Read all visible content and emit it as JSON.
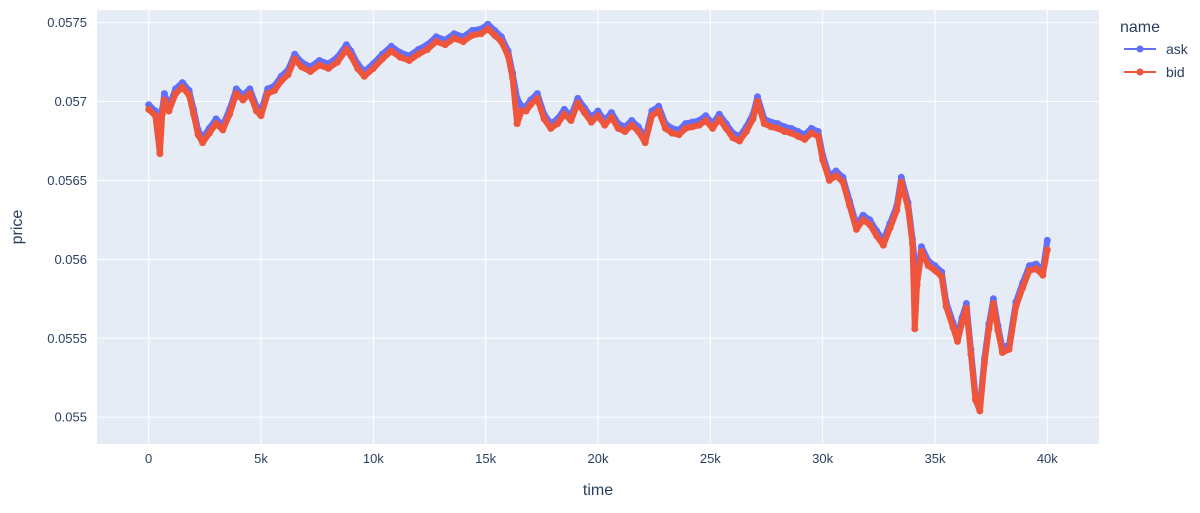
{
  "chart_data": {
    "type": "line",
    "mode": "lines+markers",
    "xlabel": "time",
    "ylabel": "price",
    "xlim": [
      -2300,
      42300
    ],
    "ylim": [
      0.05483,
      0.05758
    ],
    "x_ticks": [
      0,
      5000,
      10000,
      15000,
      20000,
      25000,
      30000,
      35000,
      40000
    ],
    "x_tick_labels": [
      "0",
      "5k",
      "10k",
      "15k",
      "20k",
      "25k",
      "30k",
      "35k",
      "40k"
    ],
    "y_ticks": [
      0.055,
      0.0555,
      0.056,
      0.0565,
      0.057,
      0.0575
    ],
    "y_tick_labels": [
      "0.055",
      "0.0555",
      "0.056",
      "0.0565",
      "0.057",
      "0.0575"
    ],
    "grid": true,
    "legend": {
      "title": "name",
      "placement": "top-right"
    },
    "series": [
      {
        "name": "ask",
        "color": "#636efa",
        "x": [
          0,
          300,
          500,
          600,
          700,
          900,
          1200,
          1500,
          1800,
          2000,
          2200,
          2400,
          2700,
          3000,
          3300,
          3600,
          3900,
          4200,
          4500,
          4800,
          5000,
          5300,
          5600,
          5900,
          6200,
          6500,
          6800,
          7200,
          7600,
          8000,
          8400,
          8800,
          9000,
          9300,
          9600,
          10000,
          10400,
          10800,
          11200,
          11600,
          12000,
          12400,
          12800,
          13200,
          13600,
          14000,
          14400,
          14800,
          15100,
          15400,
          15700,
          16000,
          16200,
          16400,
          16600,
          16800,
          17000,
          17300,
          17600,
          17900,
          18200,
          18500,
          18800,
          19100,
          19400,
          19700,
          20000,
          20300,
          20600,
          20900,
          21200,
          21500,
          21800,
          22100,
          22400,
          22700,
          23000,
          23300,
          23600,
          23900,
          24200,
          24500,
          24800,
          25100,
          25400,
          25700,
          26000,
          26300,
          26600,
          26900,
          27100,
          27400,
          27700,
          28000,
          28300,
          28600,
          28900,
          29200,
          29500,
          29800,
          30000,
          30300,
          30600,
          30900,
          31200,
          31500,
          31800,
          32100,
          32400,
          32700,
          33000,
          33300,
          33500,
          33800,
          34000,
          34100,
          34200,
          34400,
          34700,
          35000,
          35300,
          35500,
          35800,
          36000,
          36200,
          36400,
          36600,
          36800,
          37000,
          37200,
          37400,
          37600,
          37800,
          38000,
          38300,
          38600,
          38900,
          39200,
          39500,
          39800,
          40000
        ],
        "y": [
          0.05698,
          0.05694,
          0.0568,
          0.05695,
          0.05705,
          0.05697,
          0.05708,
          0.05712,
          0.05707,
          0.05695,
          0.05682,
          0.05677,
          0.05683,
          0.05689,
          0.05685,
          0.05695,
          0.05708,
          0.05704,
          0.05708,
          0.05697,
          0.05694,
          0.05708,
          0.0571,
          0.05716,
          0.0572,
          0.0573,
          0.05725,
          0.05722,
          0.05726,
          0.05724,
          0.05728,
          0.05736,
          0.05732,
          0.05724,
          0.05719,
          0.05724,
          0.0573,
          0.05735,
          0.05731,
          0.05729,
          0.05733,
          0.05736,
          0.05741,
          0.05739,
          0.05743,
          0.05741,
          0.05745,
          0.05746,
          0.05749,
          0.05745,
          0.05741,
          0.05732,
          0.05718,
          0.05702,
          0.05697,
          0.05697,
          0.05701,
          0.05705,
          0.05692,
          0.05686,
          0.05689,
          0.05695,
          0.05691,
          0.05702,
          0.05696,
          0.0569,
          0.05694,
          0.05688,
          0.05693,
          0.05686,
          0.05684,
          0.05688,
          0.05684,
          0.05677,
          0.05694,
          0.05697,
          0.05686,
          0.05683,
          0.05682,
          0.05686,
          0.05687,
          0.05688,
          0.05691,
          0.05686,
          0.05692,
          0.05686,
          0.0568,
          0.05678,
          0.05684,
          0.05692,
          0.05703,
          0.05689,
          0.05687,
          0.05686,
          0.05684,
          0.05683,
          0.05681,
          0.05679,
          0.05683,
          0.05681,
          0.05666,
          0.05653,
          0.05656,
          0.05652,
          0.05637,
          0.05622,
          0.05628,
          0.05625,
          0.05618,
          0.05612,
          0.05623,
          0.05634,
          0.05652,
          0.05636,
          0.05613,
          0.05598,
          0.05587,
          0.05608,
          0.05599,
          0.05596,
          0.05592,
          0.05573,
          0.0556,
          0.05551,
          0.05563,
          0.05572,
          0.05543,
          0.05514,
          0.05507,
          0.05537,
          0.05559,
          0.05575,
          0.05558,
          0.05544,
          0.05546,
          0.05573,
          0.05585,
          0.05596,
          0.05597,
          0.05593,
          0.05612
        ]
      },
      {
        "name": "bid",
        "color": "#ef553b",
        "x": [
          0,
          300,
          500,
          600,
          700,
          900,
          1200,
          1500,
          1800,
          2000,
          2200,
          2400,
          2700,
          3000,
          3300,
          3600,
          3900,
          4200,
          4500,
          4800,
          5000,
          5300,
          5600,
          5900,
          6200,
          6500,
          6800,
          7200,
          7600,
          8000,
          8400,
          8800,
          9000,
          9300,
          9600,
          10000,
          10400,
          10800,
          11200,
          11600,
          12000,
          12400,
          12800,
          13200,
          13600,
          14000,
          14400,
          14800,
          15100,
          15400,
          15700,
          16000,
          16200,
          16400,
          16600,
          16800,
          17000,
          17300,
          17600,
          17900,
          18200,
          18500,
          18800,
          19100,
          19400,
          19700,
          20000,
          20300,
          20600,
          20900,
          21200,
          21500,
          21800,
          22100,
          22400,
          22700,
          23000,
          23300,
          23600,
          23900,
          24200,
          24500,
          24800,
          25100,
          25400,
          25700,
          26000,
          26300,
          26600,
          26900,
          27100,
          27400,
          27700,
          28000,
          28300,
          28600,
          28900,
          29200,
          29500,
          29800,
          30000,
          30300,
          30600,
          30900,
          31200,
          31500,
          31800,
          32100,
          32400,
          32700,
          33000,
          33300,
          33500,
          33800,
          34000,
          34100,
          34200,
          34400,
          34700,
          35000,
          35300,
          35500,
          35800,
          36000,
          36200,
          36400,
          36600,
          36800,
          37000,
          37200,
          37400,
          37600,
          37800,
          38000,
          38300,
          38600,
          38900,
          39200,
          39500,
          39800,
          40000
        ],
        "y": [
          0.05695,
          0.05691,
          0.05667,
          0.05692,
          0.05701,
          0.05694,
          0.05705,
          0.05709,
          0.05704,
          0.05692,
          0.05679,
          0.05674,
          0.0568,
          0.05686,
          0.05682,
          0.05692,
          0.05705,
          0.05701,
          0.05705,
          0.05694,
          0.05691,
          0.05705,
          0.05707,
          0.05713,
          0.05717,
          0.05727,
          0.05722,
          0.05719,
          0.05723,
          0.05721,
          0.05725,
          0.05733,
          0.05729,
          0.05721,
          0.05716,
          0.05721,
          0.05727,
          0.05732,
          0.05728,
          0.05726,
          0.0573,
          0.05733,
          0.05738,
          0.05736,
          0.0574,
          0.05738,
          0.05742,
          0.05743,
          0.05746,
          0.05742,
          0.05738,
          0.05729,
          0.05715,
          0.05686,
          0.05694,
          0.05694,
          0.05698,
          0.05702,
          0.05689,
          0.05683,
          0.05686,
          0.05692,
          0.05688,
          0.05699,
          0.05693,
          0.05687,
          0.05691,
          0.05685,
          0.0569,
          0.05683,
          0.05681,
          0.05685,
          0.05681,
          0.05674,
          0.05691,
          0.05694,
          0.05683,
          0.0568,
          0.05679,
          0.05683,
          0.05684,
          0.05685,
          0.05688,
          0.05683,
          0.05689,
          0.05683,
          0.05677,
          0.05675,
          0.05681,
          0.05689,
          0.057,
          0.05686,
          0.05684,
          0.05683,
          0.05681,
          0.0568,
          0.05678,
          0.05676,
          0.0568,
          0.05678,
          0.05663,
          0.0565,
          0.05653,
          0.05649,
          0.05634,
          0.05619,
          0.05625,
          0.05622,
          0.05615,
          0.05609,
          0.0562,
          0.05631,
          0.05649,
          0.05633,
          0.0561,
          0.05556,
          0.05584,
          0.05605,
          0.05596,
          0.05593,
          0.05589,
          0.0557,
          0.05557,
          0.05548,
          0.0556,
          0.05569,
          0.0554,
          0.05511,
          0.05504,
          0.05534,
          0.05556,
          0.05572,
          0.05555,
          0.05541,
          0.05543,
          0.0557,
          0.05582,
          0.05593,
          0.05594,
          0.0559,
          0.05606
        ]
      }
    ]
  }
}
